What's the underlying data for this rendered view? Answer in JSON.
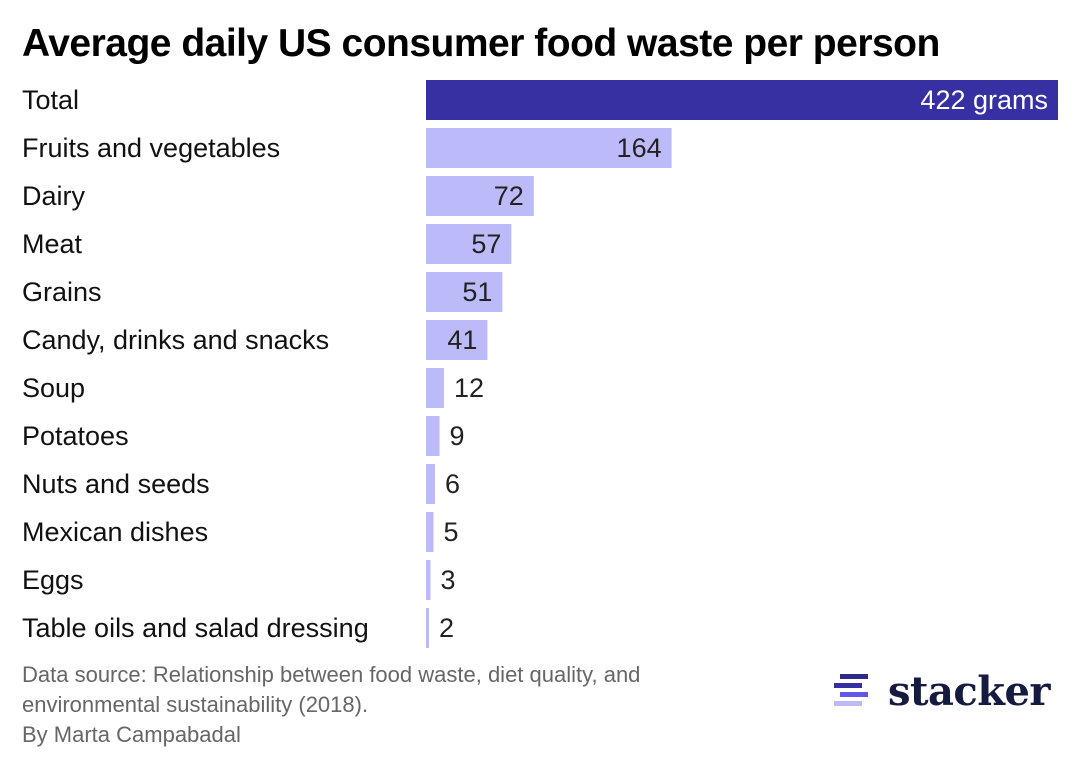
{
  "chart_data": {
    "type": "bar",
    "orientation": "horizontal",
    "title": "Average daily US consumer food waste per person",
    "xlabel": "",
    "ylabel": "",
    "unit": "grams",
    "xlim": [
      0,
      422
    ],
    "grid": false,
    "categories": [
      "Total",
      "Fruits and vegetables",
      "Dairy",
      "Meat",
      "Grains",
      "Candy, drinks and snacks",
      "Soup",
      "Potatoes",
      "Nuts and seeds",
      "Mexican dishes",
      "Eggs",
      "Table oils and salad dressing"
    ],
    "values": [
      422,
      164,
      72,
      57,
      51,
      41,
      12,
      9,
      6,
      5,
      3,
      2
    ],
    "data_labels": [
      "422 grams",
      "164",
      "72",
      "57",
      "51",
      "41",
      "12",
      "9",
      "6",
      "5",
      "3",
      "2"
    ],
    "colors": {
      "highlight": "#3730a3",
      "default": "#bcbaf8"
    }
  },
  "footer": {
    "source_line1": "Data source: Relationship between food waste, diet quality, and",
    "source_line2": "environmental sustainability (2018).",
    "byline": "By Marta Campabadal"
  },
  "logo": {
    "text": "stacker"
  }
}
